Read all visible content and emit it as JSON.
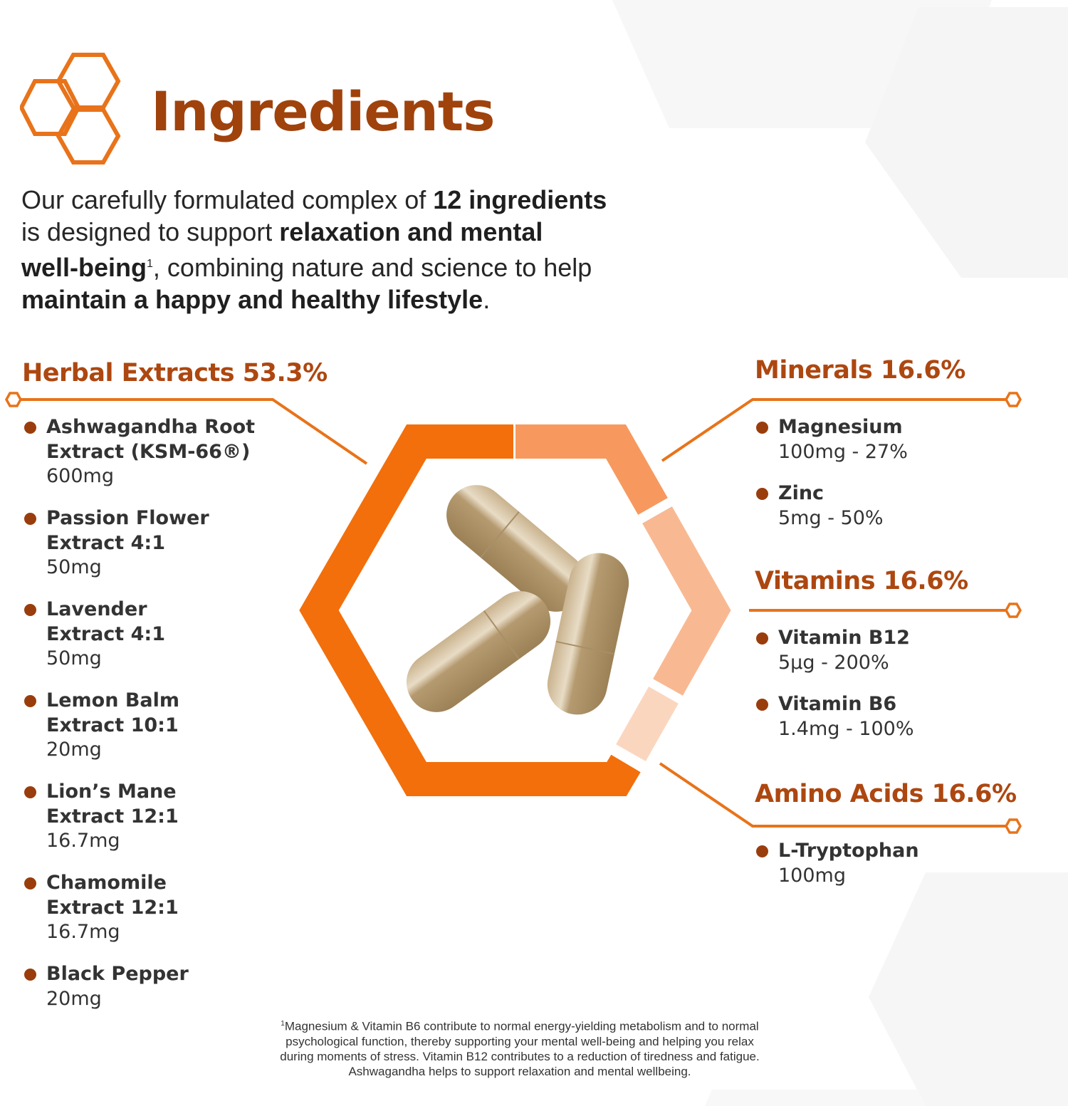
{
  "header": {
    "title": "Ingredients",
    "logo_icon": "honeycomb-icon"
  },
  "intro": {
    "segments": [
      {
        "text": "Our carefully formulated complex of ",
        "bold": false
      },
      {
        "text": "12 ingredients",
        "bold": true
      },
      {
        "text": "is designed to support ",
        "bold": false
      },
      {
        "text": "relaxation and mental",
        "bold": true
      },
      {
        "text": "well-being",
        "bold": true
      },
      {
        "text": "1",
        "bold": false
      },
      {
        "text": ", combining nature and science to help",
        "bold": false
      },
      {
        "text": "maintain a happy and healthy lifestyle",
        "bold": true
      },
      {
        "text": ".",
        "bold": false
      }
    ]
  },
  "groups": {
    "herbal": {
      "heading": "Herbal Extracts 53.3%",
      "items": [
        {
          "name1": "Ashwagandha Root",
          "name2": "Extract (KSM-66®)",
          "amount": "600mg"
        },
        {
          "name1": "Passion Flower",
          "name2": "Extract 4:1",
          "amount": "50mg"
        },
        {
          "name1": "Lavender",
          "name2": "Extract 4:1",
          "amount": "50mg"
        },
        {
          "name1": "Lemon Balm",
          "name2": "Extract 10:1",
          "amount": "20mg"
        },
        {
          "name1": "Lion’s Mane",
          "name2": "Extract 12:1",
          "amount": "16.7mg"
        },
        {
          "name1": "Chamomile",
          "name2": "Extract 12:1",
          "amount": "16.7mg"
        },
        {
          "name1": "Black Pepper",
          "amount": "20mg"
        }
      ]
    },
    "minerals": {
      "heading": "Minerals 16.6%",
      "items": [
        {
          "name1": "Magnesium",
          "amount": "100mg - 27%"
        },
        {
          "name1": "Zinc",
          "amount": "5mg - 50%"
        }
      ]
    },
    "vitamins": {
      "heading": "Vitamins 16.6%",
      "items": [
        {
          "name1": "Vitamin B12",
          "amount": "5µg - 200%"
        },
        {
          "name1": "Vitamin B6",
          "amount": "1.4mg - 100%"
        }
      ]
    },
    "amino": {
      "heading": "Amino Acids 16.6%",
      "items": [
        {
          "name1": "L-Tryptophan",
          "amount": "100mg"
        }
      ]
    }
  },
  "hex_chart": {
    "segments": [
      {
        "group": "Herbal Extracts",
        "percent": 53.3,
        "color": "#f26f0c"
      },
      {
        "group": "Minerals",
        "percent": 16.6,
        "color": "#f7995e"
      },
      {
        "group": "Vitamins",
        "percent": 16.6,
        "color": "#f8b992"
      },
      {
        "group": "Amino Acids",
        "percent": 16.6,
        "color": "#fbd6bf"
      }
    ],
    "center_image": "capsules-image"
  },
  "footnote": {
    "marker": "1",
    "lines": [
      "Magnesium & Vitamin B6 contribute to normal energy-yielding metabolism and to normal",
      "psychological function, thereby supporting your mental well-being and helping you relax",
      "during moments of stress. Vitamin B12 contributes to a reduction of tiredness and fatigue.",
      "Ashwagandha helps to support relaxation and mental wellbeing."
    ]
  },
  "colors": {
    "title": "#a0420c",
    "heading": "#ad4710",
    "accent": "#e8731a",
    "bullet": "#9a3d0c"
  }
}
